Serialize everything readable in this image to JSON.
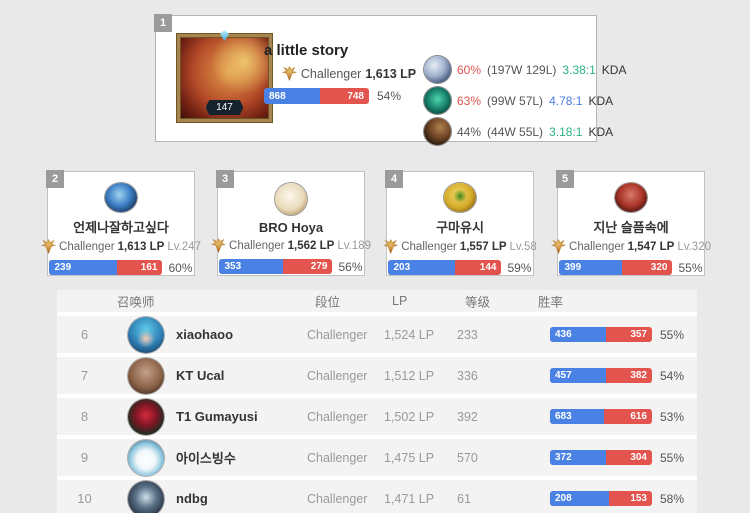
{
  "colors": {
    "win_blue": "#4982e4",
    "loss_red": "#e2544d",
    "pct_red": "#e0544e",
    "kda_teal": "#2ab28a",
    "kda_blue": "#4a7de0",
    "badge_gray": "#9b9b9b"
  },
  "top_player": {
    "rank": "1",
    "name": "a little story",
    "tier": "Challenger",
    "lp": "1,613 LP",
    "level": "147",
    "wins": "868",
    "losses": "748",
    "win_rate": "54%",
    "avatar": "elise-portrait",
    "champions": [
      {
        "icon": "frost-champion-icon",
        "win_rate": "60%",
        "pct_tone": "red",
        "record": "(197W 129L)",
        "kda": "3.38:1",
        "kda_tone": "teal",
        "kda_label": "KDA"
      },
      {
        "icon": "teal-champion-icon",
        "win_rate": "63%",
        "pct_tone": "red",
        "record": "(99W 57L)",
        "kda": "4.78:1",
        "kda_tone": "blue",
        "kda_label": "KDA"
      },
      {
        "icon": "dark-champion-icon",
        "win_rate": "44%",
        "pct_tone": "gray",
        "record": "(44W 55L)",
        "kda": "3.18:1",
        "kda_tone": "teal",
        "kda_label": "KDA"
      }
    ]
  },
  "cards": [
    {
      "rank": "2",
      "name": "언제나잘하고싶다",
      "tier": "Challenger",
      "lp": "1,613 LP",
      "level": "Lv.247",
      "wins": "239",
      "losses": "161",
      "win_rate": "60%",
      "avatar": "blue-orb-icon"
    },
    {
      "rank": "3",
      "name": "BRO Hoya",
      "tier": "Challenger",
      "lp": "1,562 LP",
      "level": "Lv.189",
      "wins": "353",
      "losses": "279",
      "win_rate": "56%",
      "avatar": "poro-icon"
    },
    {
      "rank": "4",
      "name": "구마유시",
      "tier": "Challenger",
      "lp": "1,557 LP",
      "level": "Lv.58",
      "wins": "203",
      "losses": "144",
      "win_rate": "59%",
      "avatar": "gold-sprout-icon"
    },
    {
      "rank": "5",
      "name": "지난 슬픔속에",
      "tier": "Challenger",
      "lp": "1,547 LP",
      "level": "Lv.320",
      "wins": "399",
      "losses": "320",
      "win_rate": "55%",
      "avatar": "red-robot-icon"
    }
  ],
  "table": {
    "headers": {
      "summoner": "召唤师",
      "tier": "段位",
      "lp": "LP",
      "level": "等级",
      "win_rate": "胜率"
    },
    "rows": [
      {
        "rank": "6",
        "name": "xiaohaoo",
        "tier": "Challenger",
        "lp": "1,524 LP",
        "level": "233",
        "wins": "436",
        "losses": "357",
        "win_rate": "55%",
        "avatar": "blue-hair-girl-icon"
      },
      {
        "rank": "7",
        "name": "KT Ucal",
        "tier": "Challenger",
        "lp": "1,512 LP",
        "level": "336",
        "wins": "457",
        "losses": "382",
        "win_rate": "54%",
        "avatar": "brown-portrait-icon"
      },
      {
        "rank": "8",
        "name": "T1 Gumayusi",
        "tier": "Challenger",
        "lp": "1,502 LP",
        "level": "392",
        "wins": "683",
        "losses": "616",
        "win_rate": "53%",
        "avatar": "rose-icon"
      },
      {
        "rank": "9",
        "name": "아이스빙수",
        "tier": "Challenger",
        "lp": "1,475 LP",
        "level": "570",
        "wins": "372",
        "losses": "304",
        "win_rate": "55%",
        "avatar": "penguin-icon"
      },
      {
        "rank": "10",
        "name": "ndbg",
        "tier": "Challenger",
        "lp": "1,471 LP",
        "level": "61",
        "wins": "208",
        "losses": "153",
        "win_rate": "58%",
        "avatar": "dark-mask-icon"
      }
    ]
  }
}
